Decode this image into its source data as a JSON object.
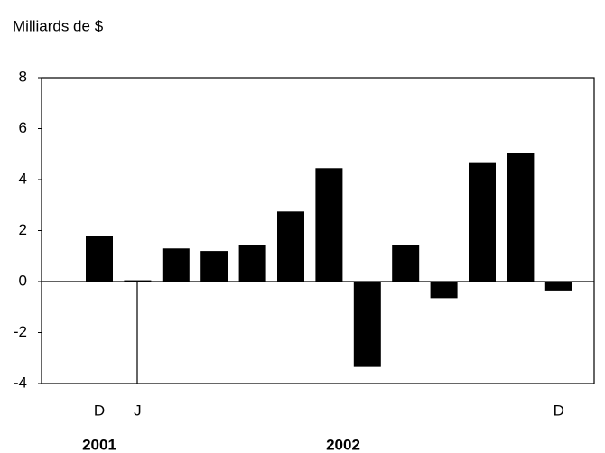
{
  "chart_data": {
    "type": "bar",
    "y_label": "Milliards de $",
    "categories": [
      "D",
      "J",
      null,
      null,
      null,
      null,
      null,
      null,
      null,
      null,
      null,
      null,
      "D"
    ],
    "values": [
      1.8,
      0.05,
      1.3,
      1.2,
      1.45,
      2.75,
      4.45,
      -3.35,
      1.45,
      -0.65,
      4.65,
      5.05,
      -0.35
    ],
    "color": "#000000",
    "ylim": [
      -4,
      8
    ],
    "yticks": [
      -4,
      -2,
      0,
      2,
      4,
      6,
      8
    ],
    "grid": false,
    "annotations": [
      "2001",
      "2002"
    ]
  }
}
